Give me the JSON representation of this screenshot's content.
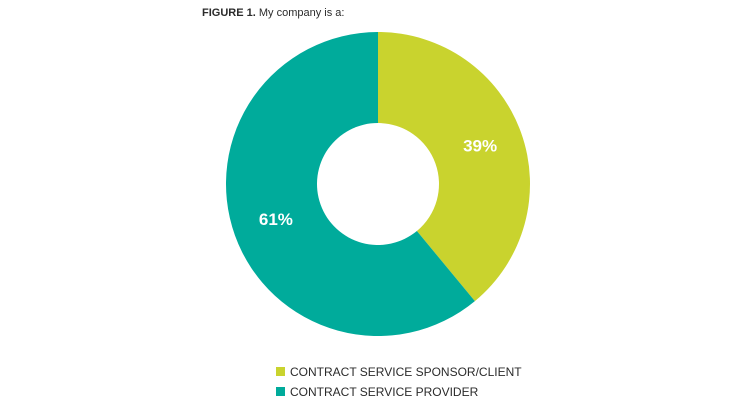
{
  "figure": {
    "label": "FIGURE 1.",
    "caption": "My company is a:"
  },
  "chart_data": {
    "type": "pie",
    "donut": true,
    "title": "FIGURE 1. My company is a:",
    "labels": [
      "CONTRACT SERVICE SPONSOR/CLIENT",
      "CONTRACT SERVICE PROVIDER"
    ],
    "values": [
      39,
      61
    ],
    "value_labels": [
      "39%",
      "61%"
    ],
    "colors": [
      "#c9d32e",
      "#00ab9b"
    ],
    "start": "12 o'clock",
    "direction": "clockwise",
    "legend_position": "bottom"
  },
  "legend": {
    "items": [
      {
        "label": "CONTRACT SERVICE SPONSOR/CLIENT",
        "color": "#c9d32e"
      },
      {
        "label": "CONTRACT SERVICE PROVIDER",
        "color": "#00ab9b"
      }
    ]
  }
}
